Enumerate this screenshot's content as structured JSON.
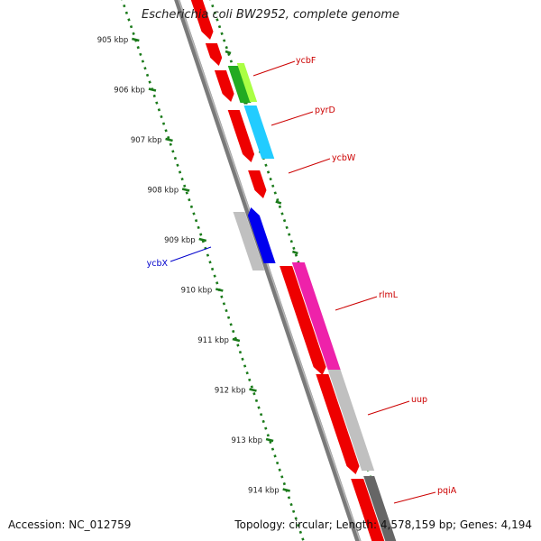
{
  "title": "Escherichia coli BW2952, complete genome",
  "footer": {
    "accession": "Accession: NC_012759",
    "topology": "Topology: circular; Length: 4,578,159 bp; Genes: 4,194"
  },
  "colors": {
    "backbone": "#808080",
    "tick_dotted": "#1a7a1a",
    "label_red": "#cc0000",
    "label_blue": "#0000cc"
  },
  "scale": {
    "ticks": [
      {
        "label": "905 kbp"
      },
      {
        "label": "906 kbp"
      },
      {
        "label": "907 kbp"
      },
      {
        "label": "908 kbp"
      },
      {
        "label": "909 kbp"
      },
      {
        "label": "910 kbp"
      },
      {
        "label": "911 kbp"
      },
      {
        "label": "912 kbp"
      },
      {
        "label": "913 kbp"
      },
      {
        "label": "914 kbp"
      }
    ]
  },
  "gene_labels": [
    {
      "name": "ycbF",
      "color": "#cc0000"
    },
    {
      "name": "pyrD",
      "color": "#cc0000"
    },
    {
      "name": "ycbW",
      "color": "#cc0000"
    },
    {
      "name": "ycbX",
      "color": "#0000cc"
    },
    {
      "name": "rlmL",
      "color": "#cc0000"
    },
    {
      "name": "uup",
      "color": "#cc0000"
    },
    {
      "name": "pqiA",
      "color": "#cc0000"
    }
  ]
}
